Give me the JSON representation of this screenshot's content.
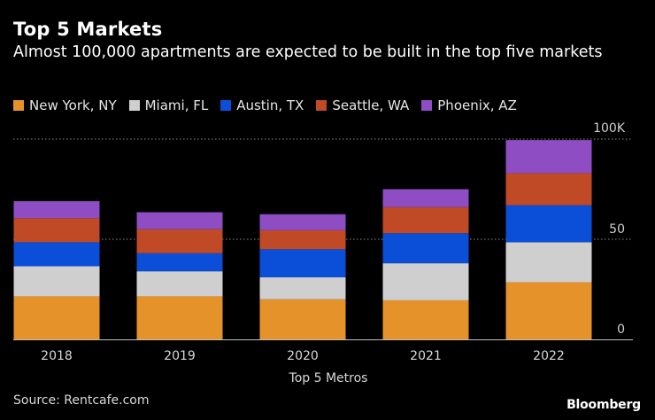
{
  "title": "Top 5 Markets",
  "subtitle": "Almost 100,000 apartments are expected to be built in the top five markets",
  "source": "Source: Rentcafe.com",
  "brand": "Bloomberg",
  "chart_data": {
    "type": "bar",
    "stacked": true,
    "title": "Top 5 Markets",
    "xlabel": "Top 5 Metros",
    "ylabel": "",
    "ylim": [
      0,
      100
    ],
    "y_ticks": [
      0,
      50,
      100
    ],
    "y_tick_labels": [
      "0",
      "50",
      "100K"
    ],
    "grid": true,
    "legend_position": "top-left",
    "categories": [
      "2018",
      "2019",
      "2020",
      "2021",
      "2022"
    ],
    "series": [
      {
        "name": "New York, NY",
        "color": "#e6922a",
        "values": [
          21.5,
          21.5,
          20,
          19.5,
          28.5
        ]
      },
      {
        "name": "Miami, FL",
        "color": "#cfcfcf",
        "values": [
          15,
          12.5,
          11,
          18.5,
          20
        ]
      },
      {
        "name": "Austin, TX",
        "color": "#0b4fd8",
        "values": [
          12,
          9,
          14,
          15,
          18.5
        ]
      },
      {
        "name": "Seattle, WA",
        "color": "#bf4a25",
        "values": [
          12,
          12,
          9.5,
          13,
          16
        ]
      },
      {
        "name": "Phoenix, AZ",
        "color": "#8e4dc3",
        "values": [
          8.5,
          8.5,
          8,
          9,
          16.5
        ]
      }
    ]
  }
}
